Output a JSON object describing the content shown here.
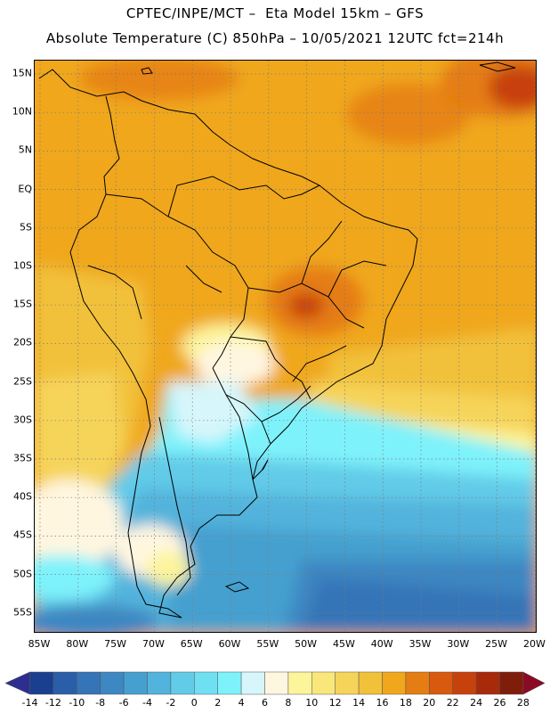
{
  "header": {
    "line1": "CPTEC/INPE/MCT –  Eta Model 15km – GFS",
    "line2": "Absolute Temperature (C) 850hPa – 10/05/2021 12UTC fct=214h"
  },
  "map": {
    "lat_labels": [
      "15N",
      "10N",
      "5N",
      "EQ",
      "5S",
      "10S",
      "15S",
      "20S",
      "25S",
      "30S",
      "35S",
      "40S",
      "45S",
      "50S",
      "55S"
    ],
    "lon_labels": [
      "85W",
      "80W",
      "75W",
      "70W",
      "65W",
      "60W",
      "55W",
      "50W",
      "45W",
      "40W",
      "35W",
      "30W",
      "25W",
      "20W"
    ]
  },
  "colorbar": {
    "labels": [
      "-14",
      "-12",
      "-10",
      "-8",
      "-6",
      "-4",
      "-2",
      "0",
      "2",
      "4",
      "6",
      "8",
      "10",
      "12",
      "14",
      "16",
      "18",
      "20",
      "22",
      "24",
      "26",
      "28"
    ],
    "colors": [
      "#1b3f8f",
      "#2a5ea8",
      "#3575b7",
      "#3d87c2",
      "#45a0cf",
      "#52b3dc",
      "#62cbe8",
      "#6fe0f2",
      "#7ef2fb",
      "#d6f6fb",
      "#fff6e0",
      "#fdf49b",
      "#f9e77a",
      "#f6d45a",
      "#f2c13a",
      "#f0a71c",
      "#e57d12",
      "#d85a0e",
      "#c7410c",
      "#a82a0a",
      "#7f1d0b"
    ],
    "under_color": "#2c2f8f",
    "over_color": "#8b0a24"
  }
}
